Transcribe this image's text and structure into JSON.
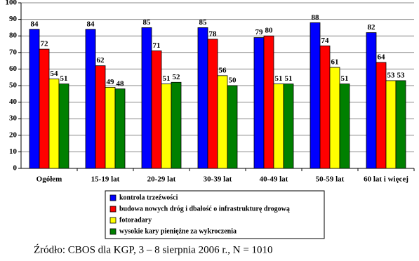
{
  "chart_data": {
    "type": "bar",
    "categories": [
      "Ogółem",
      "15-19 lat",
      "20-29 lat",
      "30-39 lat",
      "40-49 lat",
      "50-59 lat",
      "60 lat i więcej"
    ],
    "series": [
      {
        "name": "kontrola trzeźwości",
        "color": "#0000ff",
        "values": [
          84,
          84,
          85,
          85,
          79,
          88,
          82
        ]
      },
      {
        "name": "budowa nowych dróg i dbałość o infrastrukturę drogową",
        "color": "#ff0000",
        "values": [
          72,
          62,
          71,
          78,
          80,
          74,
          64
        ]
      },
      {
        "name": "fotoradary",
        "color": "#ffff00",
        "values": [
          54,
          49,
          51,
          56,
          51,
          61,
          53
        ]
      },
      {
        "name": "wysokie kary pieniężne za wykroczenia",
        "color": "#008000",
        "values": [
          51,
          48,
          52,
          50,
          51,
          51,
          53
        ]
      }
    ],
    "ylim": [
      0,
      100
    ],
    "yticks": [
      0,
      10,
      20,
      30,
      40,
      50,
      60,
      70,
      80,
      90,
      100
    ],
    "grid": true,
    "source": "Źródło: CBOS dla KGP, 3 – 8 sierpnia 2006 r., N = 1010"
  }
}
